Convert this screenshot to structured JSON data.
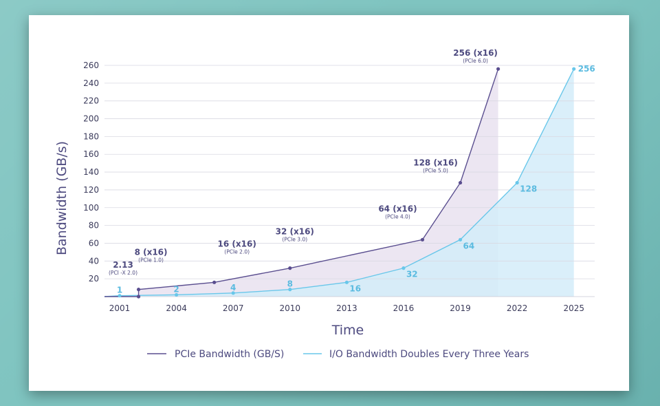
{
  "chart_data": {
    "type": "line",
    "title": "",
    "xlabel": "Time",
    "ylabel": "Bandwidth (GB/s)",
    "xlim": [
      2000.2,
      2026.1
    ],
    "ylim": [
      0,
      260
    ],
    "x_ticks": [
      "2001",
      "2004",
      "2007",
      "2010",
      "2013",
      "2016",
      "2019",
      "2022",
      "2025"
    ],
    "y_ticks": [
      "20",
      "40",
      "60",
      "80",
      "100",
      "120",
      "140",
      "160",
      "180",
      "200",
      "220",
      "240",
      "260"
    ],
    "grid": true,
    "legend_position": "bottom",
    "colors": {
      "pcie": "#5a4e8f",
      "io": "#69c7ea",
      "pcie_fill": "#ece6f2",
      "io_fill": "#d4ecf9"
    },
    "series": [
      {
        "name": "PCIe Bandwidth (GB/S)",
        "points": [
          {
            "x": 2002,
            "y": 8,
            "label": "8 (x16)",
            "sub": "(PCIe 1.0)"
          },
          {
            "x": 2006,
            "y": 16,
            "label": "16 (x16)",
            "sub": "(PCIe 2.0)"
          },
          {
            "x": 2010,
            "y": 32,
            "label": "32 (x16)",
            "sub": "(PCIe 3.0)"
          },
          {
            "x": 2017,
            "y": 64,
            "label": "64 (x16)",
            "sub": "(PCIe 4.0)"
          },
          {
            "x": 2019,
            "y": 128,
            "label": "128 (x16)",
            "sub": "(PCIe 5.0)"
          },
          {
            "x": 2021,
            "y": 256,
            "label": "256 (x16)",
            "sub": "(PCIe 6.0)"
          }
        ],
        "start": {
          "label": "2.13",
          "sub": "(PCI -X 2.0)"
        }
      },
      {
        "name": "I/O Bandwidth Doubles Every Three Years",
        "points": [
          {
            "x": 2001,
            "y": 1,
            "label": "1"
          },
          {
            "x": 2004,
            "y": 2,
            "label": "2"
          },
          {
            "x": 2007,
            "y": 4,
            "label": "4"
          },
          {
            "x": 2010,
            "y": 8,
            "label": "8"
          },
          {
            "x": 2013,
            "y": 16,
            "label": "16"
          },
          {
            "x": 2016,
            "y": 32,
            "label": "32"
          },
          {
            "x": 2019,
            "y": 64,
            "label": "64"
          },
          {
            "x": 2022,
            "y": 128,
            "label": "128"
          },
          {
            "x": 2025,
            "y": 256,
            "label": "256"
          }
        ]
      }
    ]
  }
}
